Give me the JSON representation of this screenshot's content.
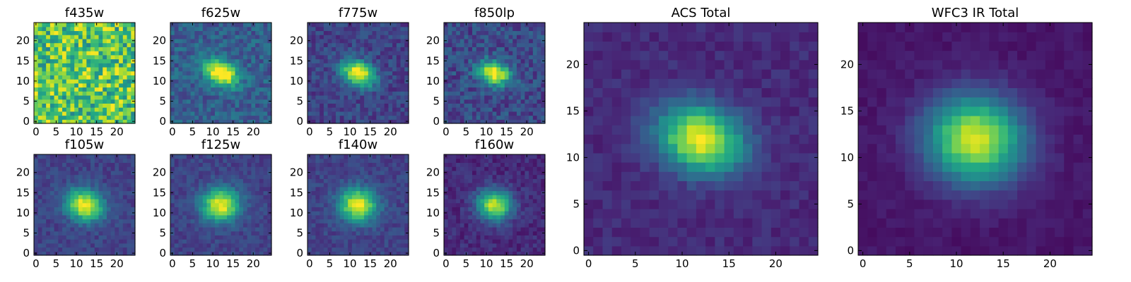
{
  "chart_data": [
    {
      "type": "heatmap",
      "title": "f435w",
      "grid": false,
      "colormap": "viridis",
      "xlim": [
        0,
        24
      ],
      "ylim": [
        0,
        24
      ],
      "xticks": [
        0,
        5,
        10,
        15,
        20
      ],
      "yticks": [
        0,
        5,
        10,
        15,
        20
      ],
      "source": {
        "center": [
          12,
          12
        ],
        "sigma_x": 2.2,
        "sigma_y": 2.2,
        "rotation_deg": 0,
        "peak": 0.15,
        "background": 0.72,
        "noise": 0.28
      }
    },
    {
      "type": "heatmap",
      "title": "f625w",
      "grid": false,
      "colormap": "viridis",
      "xlim": [
        0,
        24
      ],
      "ylim": [
        0,
        24
      ],
      "xticks": [
        0,
        5,
        10,
        15,
        20
      ],
      "yticks": [
        0,
        5,
        10,
        15,
        20
      ],
      "source": {
        "center": [
          12,
          12
        ],
        "sigma_x": 3.0,
        "sigma_y": 2.0,
        "rotation_deg": -25,
        "peak": 0.85,
        "background": 0.3,
        "noise": 0.12
      }
    },
    {
      "type": "heatmap",
      "title": "f775w",
      "grid": false,
      "colormap": "viridis",
      "xlim": [
        0,
        24
      ],
      "ylim": [
        0,
        24
      ],
      "xticks": [
        0,
        5,
        10,
        15,
        20
      ],
      "yticks": [
        0,
        5,
        10,
        15,
        20
      ],
      "source": {
        "center": [
          12,
          12
        ],
        "sigma_x": 3.0,
        "sigma_y": 2.0,
        "rotation_deg": -25,
        "peak": 0.85,
        "background": 0.2,
        "noise": 0.1
      }
    },
    {
      "type": "heatmap",
      "title": "f850lp",
      "grid": false,
      "colormap": "viridis",
      "xlim": [
        0,
        24
      ],
      "ylim": [
        0,
        24
      ],
      "xticks": [
        0,
        5,
        10,
        15,
        20
      ],
      "yticks": [
        0,
        5,
        10,
        15,
        20
      ],
      "source": {
        "center": [
          12,
          12
        ],
        "sigma_x": 2.8,
        "sigma_y": 2.0,
        "rotation_deg": -20,
        "peak": 0.8,
        "background": 0.22,
        "noise": 0.12
      }
    },
    {
      "type": "heatmap",
      "title": "f105w",
      "grid": false,
      "colormap": "viridis",
      "xlim": [
        0,
        24
      ],
      "ylim": [
        0,
        24
      ],
      "xticks": [
        0,
        5,
        10,
        15,
        20
      ],
      "yticks": [
        0,
        5,
        10,
        15,
        20
      ],
      "source": {
        "center": [
          12,
          12
        ],
        "sigma_x": 3.3,
        "sigma_y": 2.6,
        "rotation_deg": -20,
        "peak": 0.8,
        "background": 0.2,
        "noise": 0.07
      }
    },
    {
      "type": "heatmap",
      "title": "f125w",
      "grid": false,
      "colormap": "viridis",
      "xlim": [
        0,
        24
      ],
      "ylim": [
        0,
        24
      ],
      "xticks": [
        0,
        5,
        10,
        15,
        20
      ],
      "yticks": [
        0,
        5,
        10,
        15,
        20
      ],
      "source": {
        "center": [
          12,
          12
        ],
        "sigma_x": 3.2,
        "sigma_y": 2.8,
        "rotation_deg": 0,
        "peak": 0.8,
        "background": 0.2,
        "noise": 0.07
      }
    },
    {
      "type": "heatmap",
      "title": "f140w",
      "grid": false,
      "colormap": "viridis",
      "xlim": [
        0,
        24
      ],
      "ylim": [
        0,
        24
      ],
      "xticks": [
        0,
        5,
        10,
        15,
        20
      ],
      "yticks": [
        0,
        5,
        10,
        15,
        20
      ],
      "source": {
        "center": [
          12,
          12
        ],
        "sigma_x": 3.2,
        "sigma_y": 2.8,
        "rotation_deg": -10,
        "peak": 0.8,
        "background": 0.2,
        "noise": 0.07
      }
    },
    {
      "type": "heatmap",
      "title": "f160w",
      "grid": false,
      "colormap": "viridis",
      "xlim": [
        0,
        24
      ],
      "ylim": [
        0,
        24
      ],
      "xticks": [
        0,
        5,
        10,
        15,
        20
      ],
      "yticks": [
        0,
        5,
        10,
        15,
        20
      ],
      "source": {
        "center": [
          12,
          12
        ],
        "sigma_x": 3.0,
        "sigma_y": 2.6,
        "rotation_deg": -10,
        "peak": 0.8,
        "background": 0.12,
        "noise": 0.07
      }
    },
    {
      "type": "heatmap",
      "title": "ACS Total",
      "grid": false,
      "colormap": "viridis",
      "xlim": [
        0,
        24
      ],
      "ylim": [
        0,
        24
      ],
      "xticks": [
        0,
        5,
        10,
        15,
        20
      ],
      "yticks": [
        0,
        5,
        10,
        15,
        20
      ],
      "source": {
        "center": [
          12,
          12
        ],
        "sigma_x": 3.2,
        "sigma_y": 2.4,
        "rotation_deg": -20,
        "peak": 0.88,
        "background": 0.12,
        "noise": 0.05
      }
    },
    {
      "type": "heatmap",
      "title": "WFC3 IR Total",
      "grid": false,
      "colormap": "viridis",
      "xlim": [
        0,
        24
      ],
      "ylim": [
        0,
        24
      ],
      "xticks": [
        0,
        5,
        10,
        15,
        20
      ],
      "yticks": [
        0,
        5,
        10,
        15,
        20
      ],
      "source": {
        "center": [
          12,
          12
        ],
        "sigma_x": 3.6,
        "sigma_y": 3.2,
        "rotation_deg": -10,
        "peak": 0.88,
        "background": 0.06,
        "noise": 0.03
      }
    }
  ]
}
